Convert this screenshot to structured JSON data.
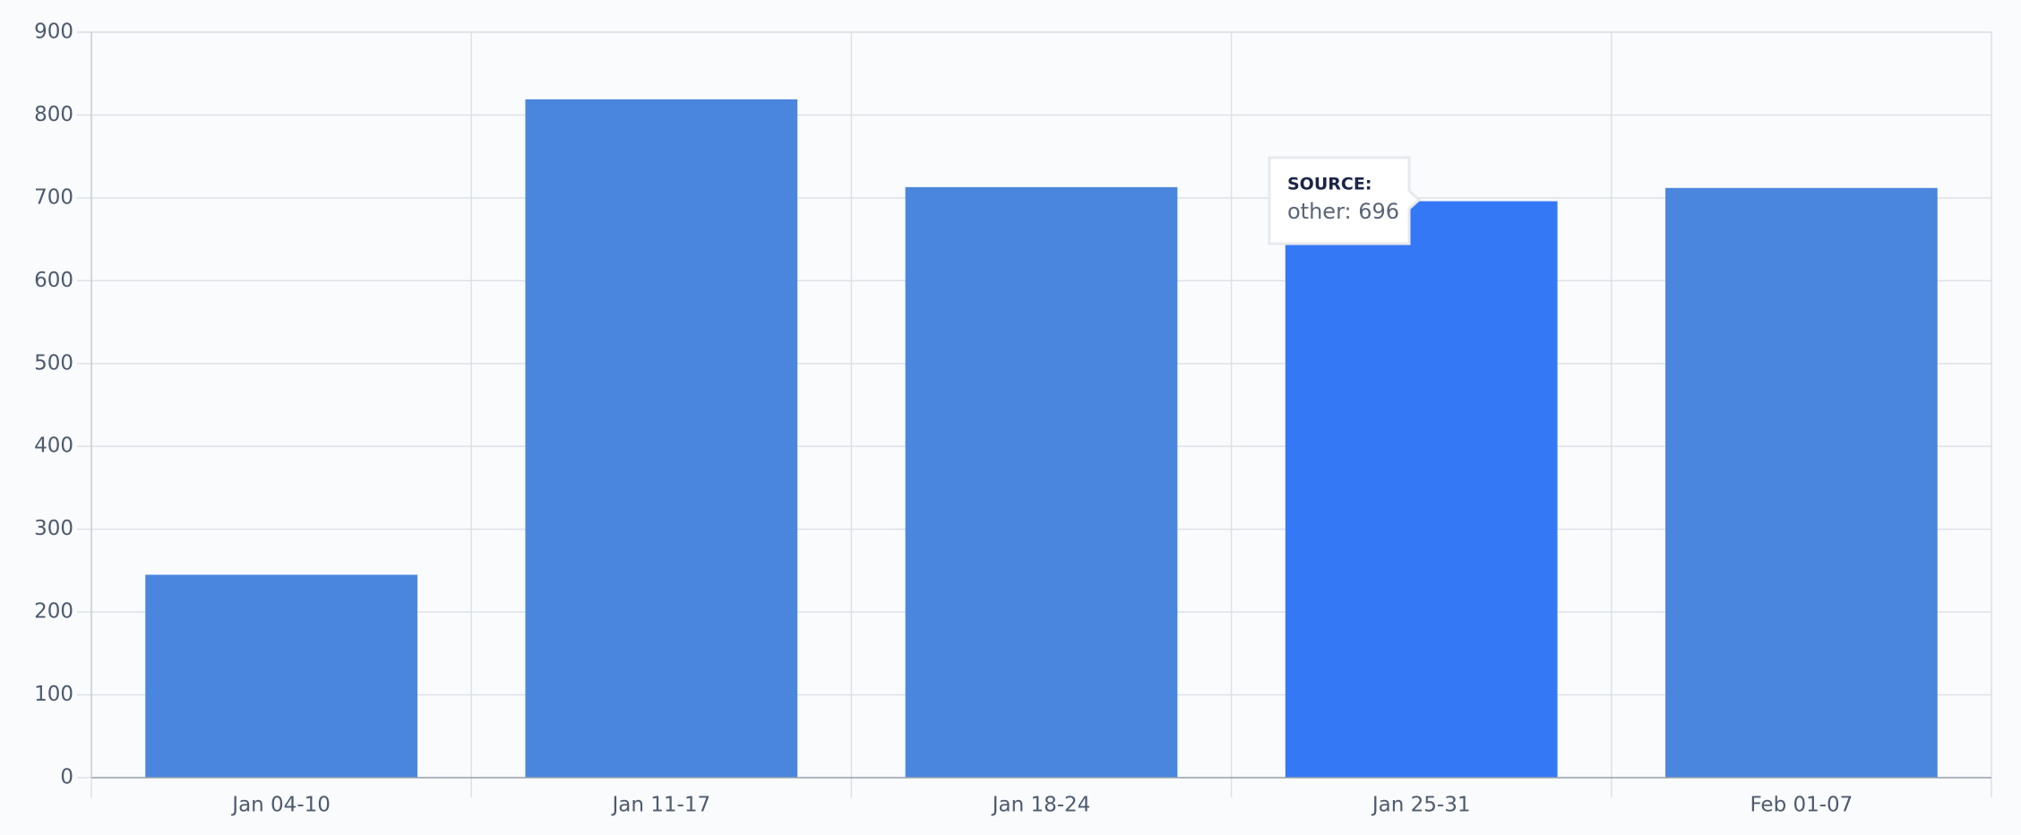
{
  "chart_data": {
    "type": "bar",
    "categories": [
      "Jan 04-10",
      "Jan 11-17",
      "Jan 18-24",
      "Jan 25-31",
      "Feb 01-07"
    ],
    "series": [
      {
        "name": "other",
        "color": "#4a86de",
        "highlight_color": "#3578f6",
        "values": [
          245,
          819,
          713,
          696,
          712
        ]
      }
    ],
    "highlight_index": 3,
    "ylim": [
      0,
      900
    ],
    "yticks": [
      0,
      100,
      200,
      300,
      400,
      500,
      600,
      700,
      800,
      900
    ],
    "grid": true,
    "tooltip": {
      "title": "SOURCE:",
      "text": "other: 696"
    }
  }
}
